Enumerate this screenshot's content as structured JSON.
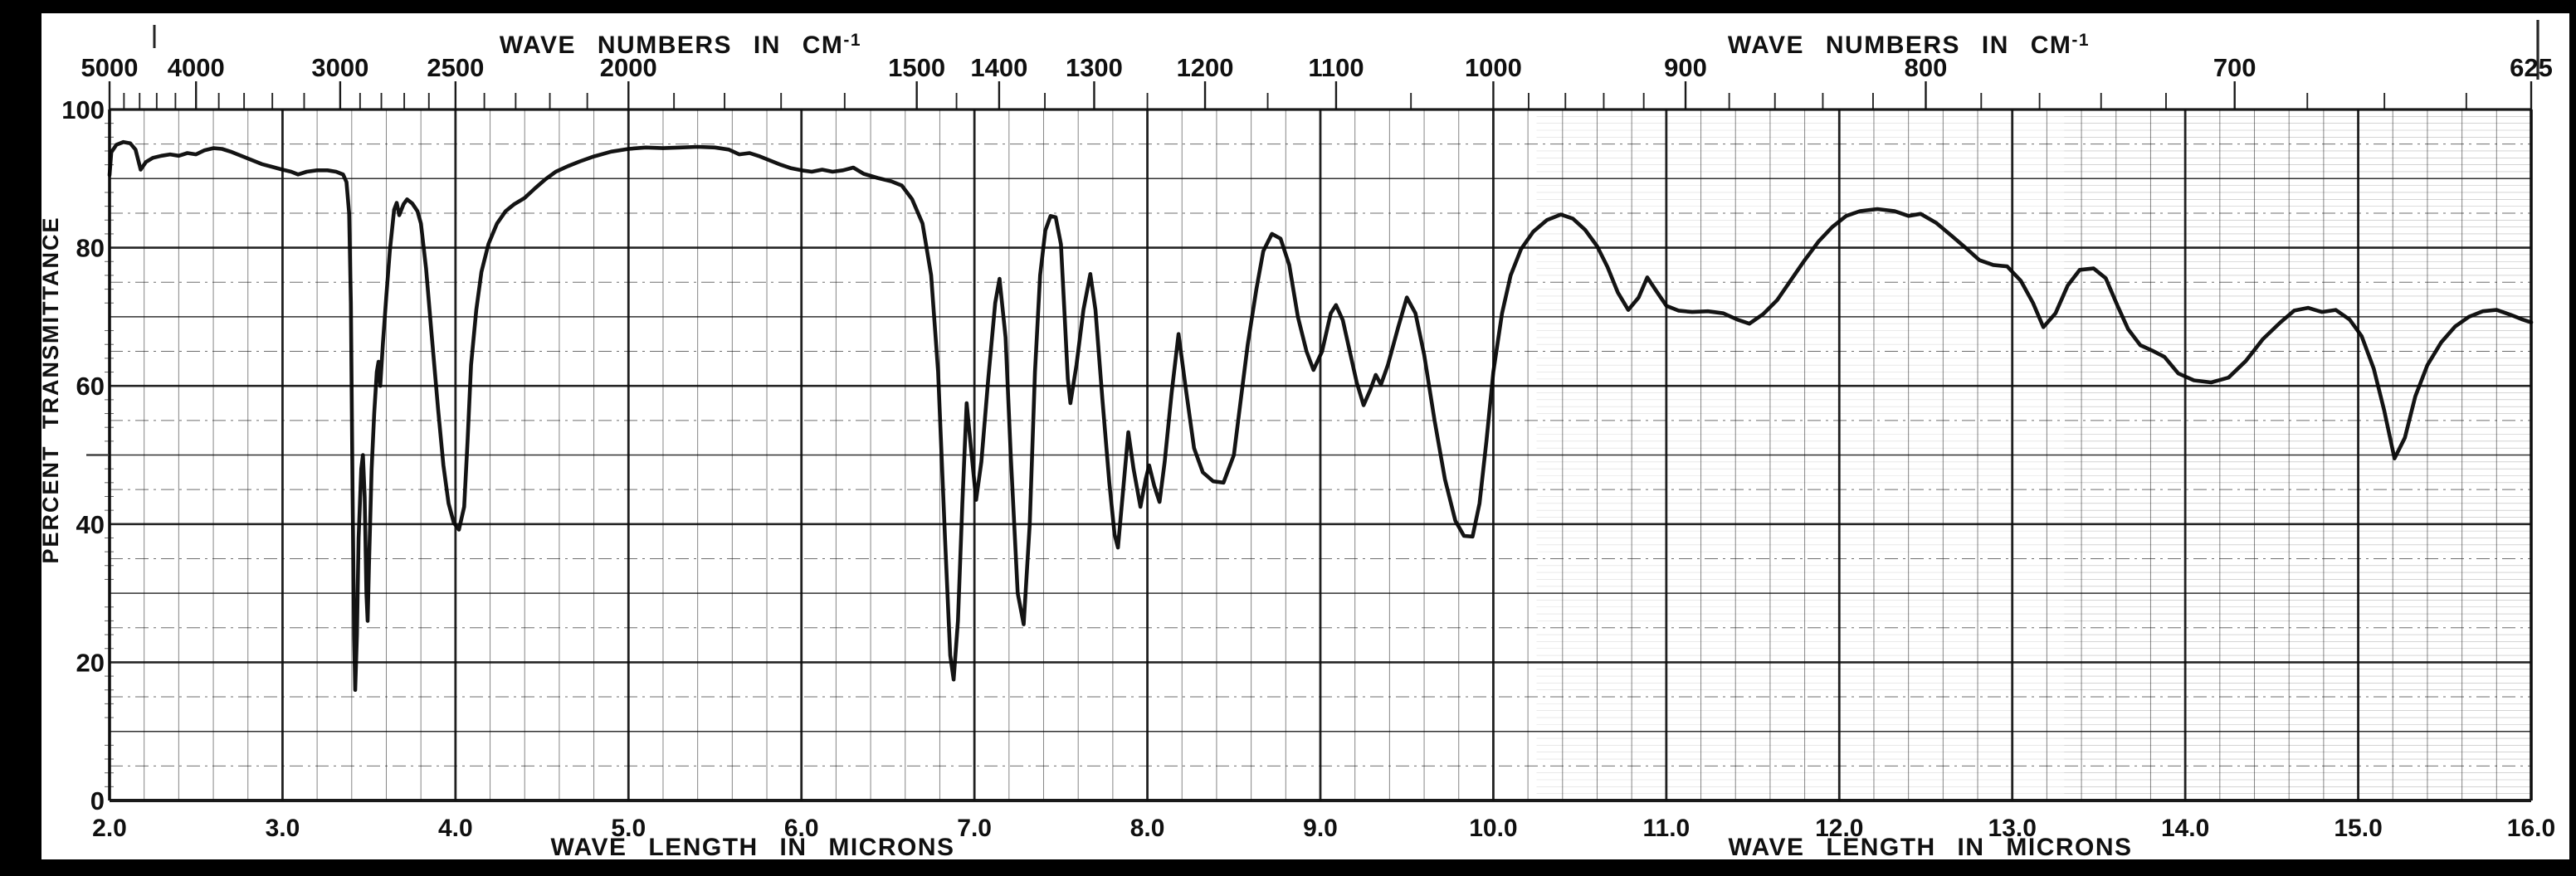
{
  "axes": {
    "top_title_main": "WAVE NUMBERS IN CM",
    "top_title_sup": "-1",
    "bottom_title": "WAVE LENGTH IN MICRONS",
    "left_title": "PERCENT TRANSMITTANCE",
    "y_tick_labels": [
      "100",
      "80",
      "60",
      "40",
      "20",
      "0"
    ],
    "y_tick_values": [
      100,
      80,
      60,
      40,
      20,
      0
    ],
    "x_micron_labels": [
      "2.0",
      "3.0",
      "4.0",
      "5.0",
      "6.0",
      "7.0",
      "8.0",
      "9.0",
      "10.0",
      "11.0",
      "12.0",
      "13.0",
      "14.0",
      "15.0",
      "16.0"
    ],
    "x_micron_values": [
      2,
      3,
      4,
      5,
      6,
      7,
      8,
      9,
      10,
      11,
      12,
      13,
      14,
      15,
      16
    ],
    "wavenumber_labeled_ticks": [
      5000,
      4000,
      3000,
      2500,
      2000,
      1500,
      1400,
      1300,
      1200,
      1100,
      1000,
      900,
      800,
      700,
      625
    ],
    "wavenumber_minor_ticks": [
      4800,
      4600,
      4400,
      4200,
      3800,
      3600,
      3400,
      3200,
      2900,
      2800,
      2700,
      2600,
      2400,
      2300,
      2200,
      2100,
      1900,
      1800,
      1700,
      1600,
      1450,
      1350,
      1250,
      1150,
      1050,
      980,
      960,
      940,
      920,
      880,
      860,
      840,
      820,
      780,
      760,
      740,
      720,
      680,
      660,
      640
    ]
  },
  "colors": {
    "paper": "#ffffff",
    "ink": "#0e0e0e",
    "frame": "#000000"
  },
  "chart_data": {
    "type": "line",
    "title": "",
    "xlabel": "WAVE LENGTH IN MICRONS",
    "x2label": "WAVE NUMBERS IN CM-1",
    "ylabel": "PERCENT TRANSMITTANCE",
    "xlim": [
      2.0,
      16.0
    ],
    "ylim": [
      0,
      100
    ],
    "grid": "fine chart paper, verticals every 0.2 micron (heavy each 1.0), horizontals every 5% (heavy each 20%)",
    "legend": "none",
    "series_name": "IR transmittance spectrum",
    "points": [
      [
        2.0,
        90.5
      ],
      [
        2.01,
        93.8
      ],
      [
        2.04,
        94.9
      ],
      [
        2.08,
        95.3
      ],
      [
        2.12,
        95.1
      ],
      [
        2.15,
        94.2
      ],
      [
        2.18,
        91.3
      ],
      [
        2.21,
        92.4
      ],
      [
        2.25,
        93.0
      ],
      [
        2.3,
        93.3
      ],
      [
        2.35,
        93.5
      ],
      [
        2.4,
        93.3
      ],
      [
        2.45,
        93.7
      ],
      [
        2.5,
        93.5
      ],
      [
        2.55,
        94.1
      ],
      [
        2.6,
        94.4
      ],
      [
        2.65,
        94.3
      ],
      [
        2.7,
        93.9
      ],
      [
        2.76,
        93.3
      ],
      [
        2.82,
        92.7
      ],
      [
        2.88,
        92.1
      ],
      [
        2.94,
        91.7
      ],
      [
        3.0,
        91.3
      ],
      [
        3.05,
        91.0
      ],
      [
        3.09,
        90.6
      ],
      [
        3.14,
        91.0
      ],
      [
        3.2,
        91.2
      ],
      [
        3.26,
        91.2
      ],
      [
        3.31,
        91.0
      ],
      [
        3.35,
        90.6
      ],
      [
        3.37,
        89.5
      ],
      [
        3.385,
        85.0
      ],
      [
        3.395,
        72.0
      ],
      [
        3.405,
        45.0
      ],
      [
        3.414,
        24.0
      ],
      [
        3.42,
        16.0
      ],
      [
        3.43,
        24.0
      ],
      [
        3.44,
        38.0
      ],
      [
        3.455,
        48.0
      ],
      [
        3.465,
        50.0
      ],
      [
        3.475,
        44.0
      ],
      [
        3.485,
        30.0
      ],
      [
        3.492,
        26.0
      ],
      [
        3.5,
        34.0
      ],
      [
        3.515,
        48.0
      ],
      [
        3.53,
        56.0
      ],
      [
        3.545,
        62.0
      ],
      [
        3.555,
        63.5
      ],
      [
        3.565,
        60.0
      ],
      [
        3.58,
        66.0
      ],
      [
        3.6,
        73.0
      ],
      [
        3.62,
        79.5
      ],
      [
        3.645,
        85.5
      ],
      [
        3.66,
        86.5
      ],
      [
        3.675,
        84.7
      ],
      [
        3.7,
        86.3
      ],
      [
        3.72,
        87.0
      ],
      [
        3.75,
        86.4
      ],
      [
        3.78,
        85.3
      ],
      [
        3.8,
        83.5
      ],
      [
        3.83,
        77.0
      ],
      [
        3.86,
        68.0
      ],
      [
        3.9,
        56.5
      ],
      [
        3.93,
        48.5
      ],
      [
        3.96,
        43.0
      ],
      [
        3.99,
        40.2
      ],
      [
        4.02,
        39.2
      ],
      [
        4.05,
        42.5
      ],
      [
        4.07,
        52.0
      ],
      [
        4.09,
        63.0
      ],
      [
        4.12,
        71.0
      ],
      [
        4.15,
        76.5
      ],
      [
        4.19,
        80.5
      ],
      [
        4.24,
        83.5
      ],
      [
        4.29,
        85.3
      ],
      [
        4.34,
        86.3
      ],
      [
        4.4,
        87.2
      ],
      [
        4.46,
        88.6
      ],
      [
        4.52,
        89.9
      ],
      [
        4.58,
        91.0
      ],
      [
        4.65,
        91.8
      ],
      [
        4.72,
        92.5
      ],
      [
        4.8,
        93.2
      ],
      [
        4.9,
        93.9
      ],
      [
        5.0,
        94.3
      ],
      [
        5.1,
        94.5
      ],
      [
        5.2,
        94.4
      ],
      [
        5.3,
        94.5
      ],
      [
        5.4,
        94.6
      ],
      [
        5.5,
        94.5
      ],
      [
        5.58,
        94.2
      ],
      [
        5.64,
        93.5
      ],
      [
        5.7,
        93.7
      ],
      [
        5.76,
        93.2
      ],
      [
        5.82,
        92.6
      ],
      [
        5.88,
        92.0
      ],
      [
        5.94,
        91.5
      ],
      [
        6.0,
        91.2
      ],
      [
        6.06,
        91.0
      ],
      [
        6.12,
        91.3
      ],
      [
        6.18,
        91.0
      ],
      [
        6.24,
        91.2
      ],
      [
        6.3,
        91.6
      ],
      [
        6.36,
        90.7
      ],
      [
        6.44,
        90.1
      ],
      [
        6.52,
        89.6
      ],
      [
        6.58,
        89.0
      ],
      [
        6.64,
        87.0
      ],
      [
        6.7,
        83.5
      ],
      [
        6.75,
        76.0
      ],
      [
        6.79,
        62.0
      ],
      [
        6.83,
        38.0
      ],
      [
        6.86,
        21.0
      ],
      [
        6.88,
        17.5
      ],
      [
        6.905,
        26.0
      ],
      [
        6.93,
        43.0
      ],
      [
        6.955,
        57.5
      ],
      [
        6.98,
        51.0
      ],
      [
        7.01,
        43.5
      ],
      [
        7.04,
        49.0
      ],
      [
        7.08,
        61.0
      ],
      [
        7.12,
        72.0
      ],
      [
        7.145,
        75.5
      ],
      [
        7.18,
        67.0
      ],
      [
        7.21,
        50.0
      ],
      [
        7.25,
        30.0
      ],
      [
        7.285,
        25.5
      ],
      [
        7.32,
        40.0
      ],
      [
        7.35,
        62.0
      ],
      [
        7.38,
        76.0
      ],
      [
        7.41,
        82.5
      ],
      [
        7.44,
        84.6
      ],
      [
        7.47,
        84.4
      ],
      [
        7.5,
        80.5
      ],
      [
        7.52,
        71.0
      ],
      [
        7.54,
        61.0
      ],
      [
        7.555,
        57.5
      ],
      [
        7.59,
        63.0
      ],
      [
        7.63,
        71.0
      ],
      [
        7.67,
        76.2
      ],
      [
        7.7,
        71.0
      ],
      [
        7.74,
        58.0
      ],
      [
        7.78,
        46.0
      ],
      [
        7.81,
        38.5
      ],
      [
        7.83,
        36.6
      ],
      [
        7.86,
        45.0
      ],
      [
        7.89,
        53.3
      ],
      [
        7.92,
        48.0
      ],
      [
        7.96,
        42.5
      ],
      [
        7.99,
        46.5
      ],
      [
        8.01,
        48.5
      ],
      [
        8.04,
        45.5
      ],
      [
        8.07,
        43.2
      ],
      [
        8.1,
        49.0
      ],
      [
        8.14,
        59.0
      ],
      [
        8.18,
        67.5
      ],
      [
        8.22,
        60.0
      ],
      [
        8.27,
        51.0
      ],
      [
        8.32,
        47.5
      ],
      [
        8.38,
        46.2
      ],
      [
        8.44,
        46.0
      ],
      [
        8.5,
        50.0
      ],
      [
        8.54,
        58.0
      ],
      [
        8.58,
        66.0
      ],
      [
        8.63,
        74.0
      ],
      [
        8.67,
        79.5
      ],
      [
        8.72,
        82.0
      ],
      [
        8.77,
        81.3
      ],
      [
        8.82,
        77.5
      ],
      [
        8.87,
        70.0
      ],
      [
        8.92,
        65.0
      ],
      [
        8.96,
        62.3
      ],
      [
        9.01,
        65.0
      ],
      [
        9.06,
        70.5
      ],
      [
        9.09,
        71.7
      ],
      [
        9.13,
        69.5
      ],
      [
        9.17,
        65.0
      ],
      [
        9.21,
        60.5
      ],
      [
        9.25,
        57.2
      ],
      [
        9.29,
        59.5
      ],
      [
        9.32,
        61.6
      ],
      [
        9.35,
        60.2
      ],
      [
        9.39,
        63.0
      ],
      [
        9.45,
        68.5
      ],
      [
        9.5,
        72.8
      ],
      [
        9.55,
        70.5
      ],
      [
        9.6,
        64.5
      ],
      [
        9.66,
        55.0
      ],
      [
        9.72,
        46.5
      ],
      [
        9.78,
        40.5
      ],
      [
        9.83,
        38.3
      ],
      [
        9.88,
        38.2
      ],
      [
        9.92,
        43.0
      ],
      [
        9.96,
        52.0
      ],
      [
        10.0,
        62.0
      ],
      [
        10.05,
        70.5
      ],
      [
        10.1,
        76.0
      ],
      [
        10.16,
        79.8
      ],
      [
        10.23,
        82.3
      ],
      [
        10.31,
        84.0
      ],
      [
        10.39,
        84.8
      ],
      [
        10.46,
        84.2
      ],
      [
        10.53,
        82.6
      ],
      [
        10.6,
        80.2
      ],
      [
        10.66,
        77.2
      ],
      [
        10.72,
        73.5
      ],
      [
        10.78,
        71.0
      ],
      [
        10.84,
        72.8
      ],
      [
        10.89,
        75.7
      ],
      [
        10.94,
        73.8
      ],
      [
        11.0,
        71.6
      ],
      [
        11.07,
        70.9
      ],
      [
        11.15,
        70.7
      ],
      [
        11.24,
        70.8
      ],
      [
        11.33,
        70.5
      ],
      [
        11.41,
        69.6
      ],
      [
        11.48,
        69.0
      ],
      [
        11.56,
        70.4
      ],
      [
        11.64,
        72.4
      ],
      [
        11.72,
        75.3
      ],
      [
        11.8,
        78.2
      ],
      [
        11.88,
        80.9
      ],
      [
        11.96,
        83.0
      ],
      [
        12.04,
        84.6
      ],
      [
        12.12,
        85.3
      ],
      [
        12.22,
        85.6
      ],
      [
        12.32,
        85.3
      ],
      [
        12.4,
        84.6
      ],
      [
        12.47,
        84.9
      ],
      [
        12.56,
        83.6
      ],
      [
        12.65,
        81.7
      ],
      [
        12.73,
        80.0
      ],
      [
        12.81,
        78.2
      ],
      [
        12.89,
        77.5
      ],
      [
        12.97,
        77.3
      ],
      [
        13.05,
        75.2
      ],
      [
        13.12,
        72.0
      ],
      [
        13.18,
        68.5
      ],
      [
        13.25,
        70.5
      ],
      [
        13.32,
        74.5
      ],
      [
        13.39,
        76.8
      ],
      [
        13.47,
        77.0
      ],
      [
        13.54,
        75.6
      ],
      [
        13.61,
        71.5
      ],
      [
        13.67,
        68.2
      ],
      [
        13.74,
        65.9
      ],
      [
        13.81,
        65.1
      ],
      [
        13.88,
        64.2
      ],
      [
        13.96,
        61.8
      ],
      [
        14.05,
        60.8
      ],
      [
        14.15,
        60.5
      ],
      [
        14.25,
        61.2
      ],
      [
        14.35,
        63.6
      ],
      [
        14.45,
        66.8
      ],
      [
        14.55,
        69.2
      ],
      [
        14.63,
        70.9
      ],
      [
        14.71,
        71.3
      ],
      [
        14.79,
        70.7
      ],
      [
        14.87,
        71.0
      ],
      [
        14.95,
        69.6
      ],
      [
        15.02,
        67.2
      ],
      [
        15.09,
        62.5
      ],
      [
        15.15,
        56.5
      ],
      [
        15.21,
        49.5
      ],
      [
        15.27,
        52.5
      ],
      [
        15.33,
        58.5
      ],
      [
        15.4,
        63.0
      ],
      [
        15.48,
        66.3
      ],
      [
        15.56,
        68.6
      ],
      [
        15.64,
        70.0
      ],
      [
        15.72,
        70.8
      ],
      [
        15.8,
        71.0
      ],
      [
        15.88,
        70.3
      ],
      [
        15.95,
        69.6
      ],
      [
        16.0,
        69.2
      ]
    ]
  }
}
